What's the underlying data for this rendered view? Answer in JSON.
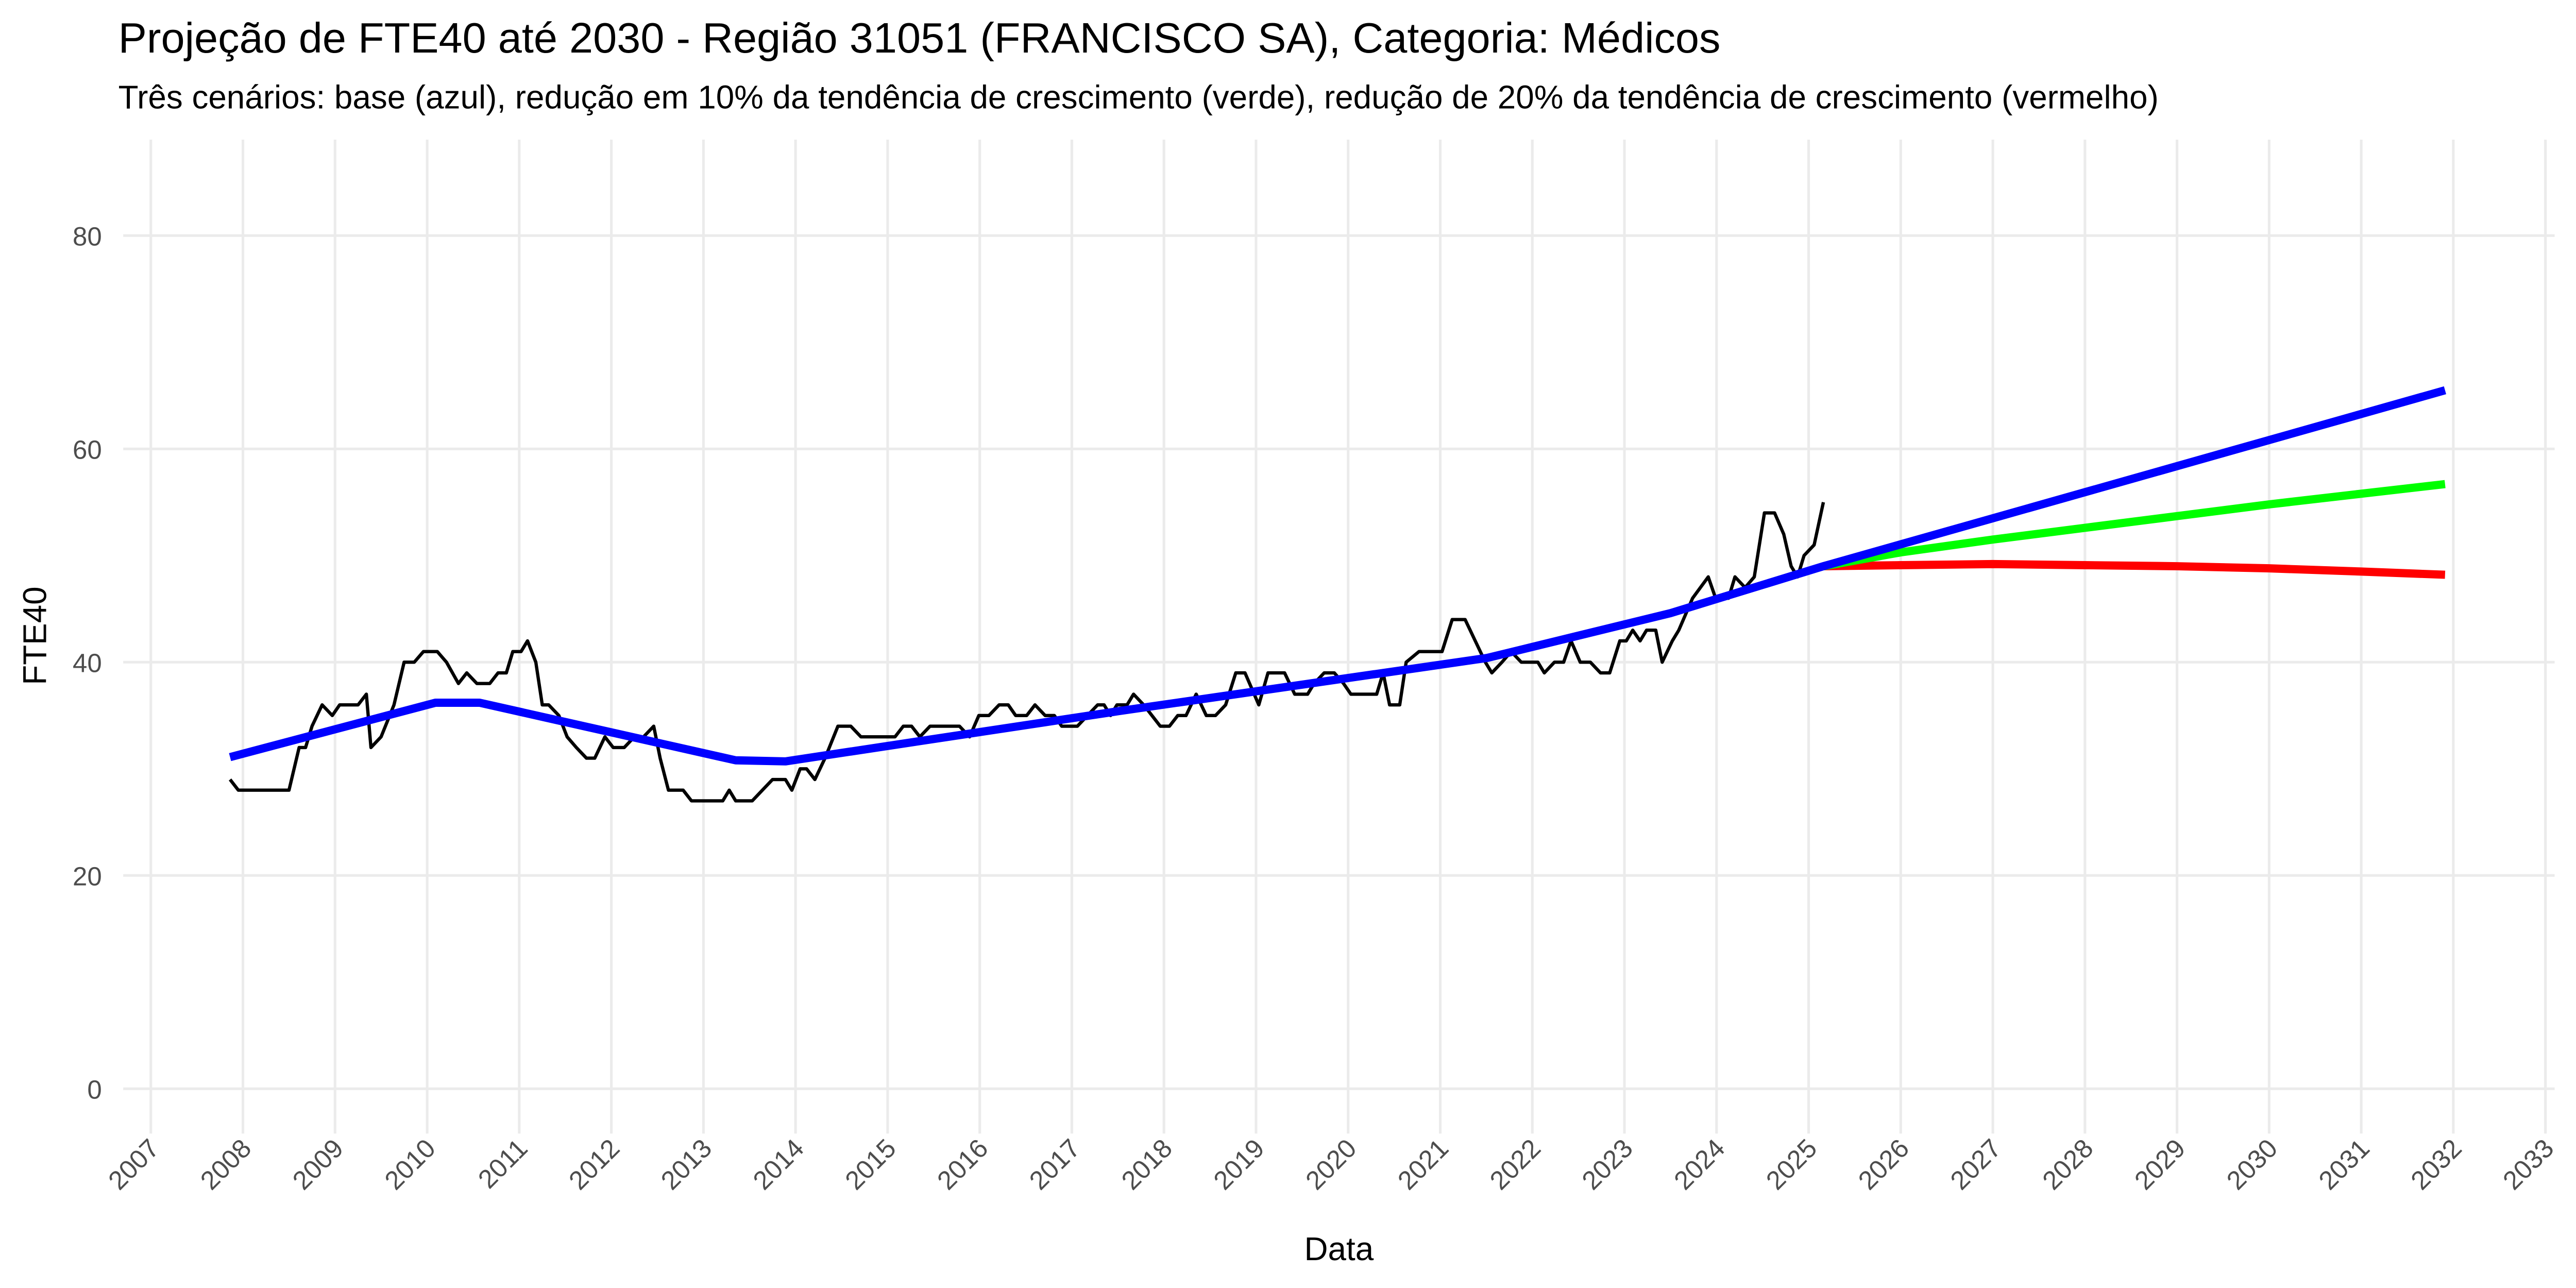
{
  "chart_data": {
    "type": "line",
    "title": "Projeção de FTE40 até 2030 - Região 31051 (FRANCISCO SA), Categoria: Médicos",
    "subtitle": "Três cenários: base (azul), redução em 10% da tendência de crescimento (verde), redução de 20% da tendência de crescimento (vermelho)",
    "x_label": "Data",
    "y_label": "FTE40",
    "xlim": [
      2006.7,
      2033.1
    ],
    "xticks": [
      2007,
      2008,
      2009,
      2010,
      2011,
      2012,
      2013,
      2014,
      2015,
      2016,
      2017,
      2018,
      2019,
      2020,
      2021,
      2022,
      2023,
      2024,
      2025,
      2026,
      2027,
      2028,
      2029,
      2030,
      2031,
      2032,
      2033
    ],
    "ylim": [
      -4.2,
      89
    ],
    "yticks": [
      0,
      20,
      40,
      60,
      80
    ],
    "grid": true,
    "series": [
      {
        "color": "#000000",
        "width": 2,
        "x": [
          2007.86,
          2007.95,
          2008.5,
          2008.61,
          2008.68,
          2008.75,
          2008.86,
          2008.97,
          2009.05,
          2009.25,
          2009.34,
          2009.39,
          2009.5,
          2009.64,
          2009.75,
          2009.86,
          2009.96,
          2010.11,
          2010.21,
          2010.34,
          2010.43,
          2010.54,
          2010.68,
          2010.77,
          2010.86,
          2010.93,
          2011.02,
          2011.09,
          2011.18,
          2011.25,
          2011.32,
          2011.43,
          2011.52,
          2011.62,
          2011.73,
          2011.82,
          2011.93,
          2012.02,
          2012.14,
          2012.25,
          2012.35,
          2012.46,
          2012.53,
          2012.62,
          2012.78,
          2012.87,
          2013.21,
          2013.28,
          2013.35,
          2013.53,
          2013.64,
          2013.75,
          2013.89,
          2013.96,
          2014.05,
          2014.12,
          2014.21,
          2014.32,
          2014.46,
          2014.6,
          2014.71,
          2015.08,
          2015.17,
          2015.26,
          2015.35,
          2015.46,
          2015.78,
          2015.89,
          2015.99,
          2016.1,
          2016.21,
          2016.31,
          2016.39,
          2016.51,
          2016.6,
          2016.71,
          2016.81,
          2016.89,
          2017.06,
          2017.17,
          2017.28,
          2017.35,
          2017.42,
          2017.49,
          2017.6,
          2017.67,
          2017.78,
          2017.96,
          2018.06,
          2018.15,
          2018.24,
          2018.35,
          2018.46,
          2018.56,
          2018.67,
          2018.78,
          2018.88,
          2019.03,
          2019.13,
          2019.31,
          2019.42,
          2019.56,
          2019.63,
          2019.74,
          2019.85,
          2019.95,
          2020.03,
          2020.31,
          2020.38,
          2020.45,
          2020.56,
          2020.63,
          2020.77,
          2021.02,
          2021.13,
          2021.27,
          2021.38,
          2021.49,
          2021.56,
          2021.67,
          2021.77,
          2021.88,
          2022.06,
          2022.13,
          2022.24,
          2022.34,
          2022.42,
          2022.52,
          2022.63,
          2022.74,
          2022.84,
          2022.95,
          2023.02,
          2023.09,
          2023.17,
          2023.24,
          2023.34,
          2023.41,
          2023.52,
          2023.59,
          2023.74,
          2023.91,
          2023.99,
          2024.13,
          2024.2,
          2024.31,
          2024.41,
          2024.52,
          2024.63,
          2024.73,
          2024.81,
          2024.88,
          2024.95,
          2025.06,
          2025.16
        ],
        "values": [
          29,
          28,
          28,
          32,
          32,
          34,
          36,
          35,
          36,
          36,
          37,
          32,
          33,
          36,
          40,
          40,
          41,
          41,
          40,
          38,
          39,
          38,
          38,
          39,
          39,
          41,
          41,
          42,
          40,
          36,
          36,
          35,
          33,
          32,
          31,
          31,
          33,
          32,
          32,
          33,
          33,
          34,
          31,
          28,
          28,
          27,
          27,
          28,
          27,
          27,
          28,
          29,
          29,
          28,
          30,
          30,
          29,
          31,
          34,
          34,
          33,
          33,
          34,
          34,
          33,
          34,
          34,
          33,
          35,
          35,
          36,
          36,
          35,
          35,
          36,
          35,
          35,
          34,
          34,
          35,
          36,
          36,
          35,
          36,
          36,
          37,
          36,
          34,
          34,
          35,
          35,
          37,
          35,
          35,
          36,
          39,
          39,
          36,
          39,
          39,
          37,
          37,
          38,
          39,
          39,
          38,
          37,
          37,
          39,
          36,
          36,
          40,
          41,
          41,
          44,
          44,
          42,
          40,
          39,
          40,
          41,
          40,
          40,
          39,
          40,
          40,
          42,
          40,
          40,
          39,
          39,
          42,
          42,
          43,
          42,
          43,
          43,
          40,
          42,
          43,
          46,
          48,
          46,
          46,
          48,
          47,
          48,
          54,
          54,
          52,
          49,
          48,
          50,
          51,
          55
        ]
      },
      {
        "color": "#ff0000",
        "width": 5,
        "x": [
          2025.16,
          2026,
          2027,
          2028,
          2029,
          2030,
          2031,
          2031.91
        ],
        "values": [
          49,
          49.1,
          49.2,
          49.1,
          49.0,
          48.8,
          48.5,
          48.2
        ]
      },
      {
        "color": "#00ff00",
        "width": 5,
        "x": [
          2025.16,
          2026,
          2027,
          2028,
          2029,
          2030,
          2031,
          2031.91
        ],
        "values": [
          49,
          50.3,
          51.5,
          52.6,
          53.7,
          54.8,
          55.8,
          56.7
        ]
      },
      {
        "color": "#0000ff",
        "width": 5,
        "x": [
          2007.86,
          2010.09,
          2010.57,
          2013.35,
          2013.89,
          2017.5,
          2021.51,
          2023.5,
          2025.16,
          2031.91
        ],
        "values": [
          31.1,
          36.2,
          36.2,
          30.8,
          30.7,
          35.4,
          40.4,
          44.6,
          49,
          65.5
        ]
      }
    ]
  }
}
